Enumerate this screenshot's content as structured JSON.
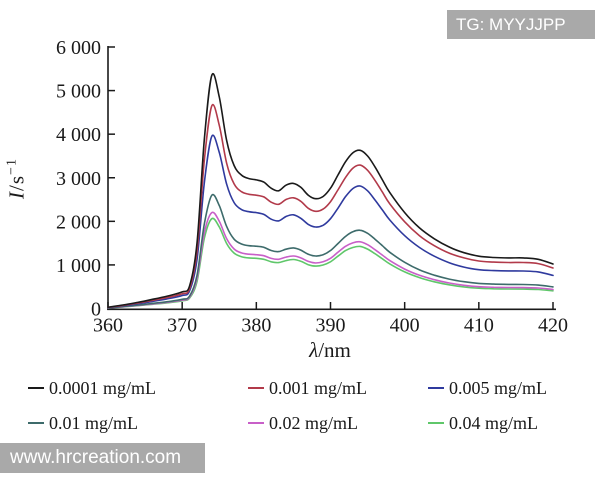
{
  "watermarks": {
    "top_right": "TG: MYYJJPP",
    "bottom_left": "www.hrcreation.com"
  },
  "chart_data": {
    "type": "line",
    "title": "",
    "xlabel": "λ/nm",
    "ylabel": "I/s⁻¹",
    "xlabel_parts": {
      "italic": "λ",
      "rest": "/nm"
    },
    "ylabel_parts": {
      "italic": "I",
      "rest": "/s",
      "sup": "−1"
    },
    "xlim": [
      360,
      420
    ],
    "ylim": [
      0,
      6000
    ],
    "grid": false,
    "legend_position": "below",
    "x_ticks": [
      360,
      370,
      380,
      390,
      400,
      410,
      420
    ],
    "x_tick_labels": [
      "360",
      "370",
      "380",
      "390",
      "400",
      "410",
      "420"
    ],
    "y_ticks": [
      0,
      1000,
      2000,
      3000,
      4000,
      5000,
      6000
    ],
    "y_tick_labels": [
      "0",
      "1 000",
      "2 000",
      "3 000",
      "4 000",
      "5 000",
      "6 000"
    ],
    "x": [
      360,
      362,
      364,
      366,
      368,
      370,
      371,
      372,
      373,
      374,
      375,
      376,
      377,
      378,
      379,
      380,
      381,
      382,
      383,
      384,
      385,
      386,
      387,
      388,
      389,
      390,
      391,
      392,
      393,
      394,
      395,
      396,
      397,
      398,
      400,
      402,
      404,
      406,
      408,
      410,
      412,
      414,
      416,
      418,
      420
    ],
    "series": [
      {
        "name": "0.0001 mg/mL",
        "color": "#1a1a1a",
        "values": [
          30,
          80,
          140,
          210,
          285,
          380,
          520,
          1500,
          3900,
          5350,
          4850,
          3850,
          3280,
          3060,
          2980,
          2950,
          2900,
          2760,
          2700,
          2830,
          2870,
          2780,
          2600,
          2520,
          2570,
          2760,
          3060,
          3360,
          3570,
          3630,
          3500,
          3250,
          2950,
          2660,
          2200,
          1850,
          1600,
          1410,
          1280,
          1200,
          1170,
          1160,
          1160,
          1130,
          1020
        ]
      },
      {
        "name": "0.001 mg/mL",
        "color": "#b23a4a",
        "values": [
          26,
          70,
          124,
          186,
          252,
          338,
          460,
          1320,
          3420,
          4650,
          4200,
          3330,
          2860,
          2680,
          2620,
          2600,
          2560,
          2440,
          2390,
          2500,
          2540,
          2460,
          2300,
          2230,
          2280,
          2450,
          2720,
          3000,
          3220,
          3290,
          3170,
          2940,
          2670,
          2400,
          1990,
          1670,
          1440,
          1270,
          1160,
          1090,
          1065,
          1055,
          1055,
          1030,
          930
        ]
      },
      {
        "name": "0.005 mg/mL",
        "color": "#2f3a9e",
        "values": [
          23,
          62,
          110,
          164,
          222,
          298,
          405,
          1120,
          2900,
          3950,
          3580,
          2850,
          2430,
          2270,
          2220,
          2200,
          2160,
          2050,
          2010,
          2110,
          2150,
          2070,
          1930,
          1870,
          1910,
          2060,
          2300,
          2560,
          2750,
          2810,
          2700,
          2490,
          2260,
          2030,
          1670,
          1400,
          1200,
          1050,
          950,
          890,
          870,
          862,
          860,
          840,
          760
        ]
      },
      {
        "name": "0.01 mg/mL",
        "color": "#3d6b6b",
        "values": [
          16,
          44,
          78,
          116,
          156,
          210,
          285,
          760,
          1950,
          2600,
          2360,
          1880,
          1590,
          1480,
          1440,
          1430,
          1405,
          1330,
          1305,
          1360,
          1390,
          1340,
          1245,
          1205,
          1235,
          1330,
          1490,
          1650,
          1760,
          1795,
          1725,
          1590,
          1440,
          1290,
          1060,
          885,
          765,
          675,
          615,
          575,
          560,
          553,
          550,
          538,
          495
        ]
      },
      {
        "name": "0.02 mg/mL",
        "color": "#c85fc8",
        "values": [
          14,
          40,
          71,
          106,
          143,
          192,
          262,
          690,
          1750,
          2200,
          2000,
          1600,
          1365,
          1275,
          1245,
          1235,
          1212,
          1150,
          1130,
          1180,
          1205,
          1162,
          1080,
          1045,
          1072,
          1152,
          1290,
          1425,
          1505,
          1530,
          1465,
          1350,
          1225,
          1100,
          905,
          762,
          660,
          585,
          533,
          500,
          487,
          482,
          480,
          470,
          437
        ]
      },
      {
        "name": "0.04 mg/mL",
        "color": "#5fc76a",
        "values": [
          13,
          37,
          65,
          97,
          131,
          176,
          240,
          620,
          1620,
          2060,
          1870,
          1490,
          1272,
          1188,
          1160,
          1152,
          1130,
          1072,
          1054,
          1100,
          1124,
          1084,
          1006,
          972,
          998,
          1072,
          1200,
          1326,
          1400,
          1424,
          1363,
          1257,
          1140,
          1023,
          840,
          708,
          613,
          543,
          495,
          465,
          453,
          448,
          445,
          436,
          406
        ]
      }
    ]
  }
}
